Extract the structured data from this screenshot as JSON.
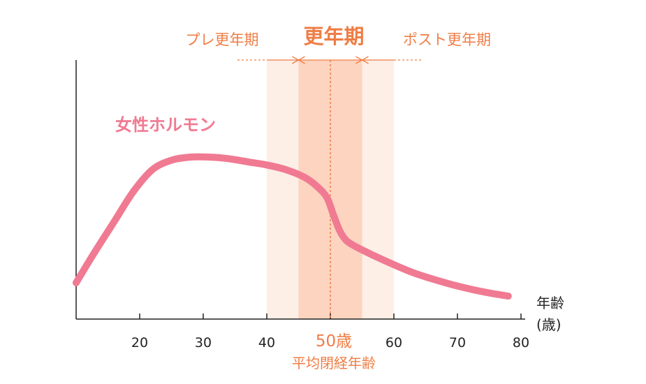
{
  "colors": {
    "curve": "#f07a92",
    "accent": "#ef7d45",
    "band_light": "#fdeee6",
    "band_dark": "#fcd4bf",
    "axis": "#222222"
  },
  "chart_data": {
    "type": "line",
    "x_ticks": [
      "20",
      "30",
      "40",
      "50",
      "60",
      "70",
      "80"
    ],
    "x_tick_values": [
      20,
      30,
      40,
      50,
      60,
      70,
      80
    ],
    "xlim": [
      10,
      80
    ],
    "ylim": [
      0,
      100
    ],
    "xlabel": "年齢",
    "xlabel_unit": "(歳)",
    "grid": false,
    "series": [
      {
        "name": "女性ホルモン",
        "x": [
          10,
          13,
          16,
          19,
          22,
          25,
          28,
          31,
          34,
          37,
          40,
          43,
          46,
          48,
          49.5,
          50.5,
          51.5,
          52.5,
          54,
          57,
          60,
          63,
          66,
          69,
          72,
          75,
          78
        ],
        "y": [
          12,
          32,
          51,
          70,
          84,
          90,
          92,
          92,
          91,
          89,
          87,
          84,
          79,
          73,
          66,
          55,
          45,
          39,
          35,
          29,
          23.5,
          18.5,
          14.5,
          11,
          8,
          5.5,
          3.5
        ]
      }
    ],
    "phases": [
      {
        "label": "プレ更年期",
        "from": 40,
        "to": 45
      },
      {
        "label": "更年期",
        "from": 45,
        "to": 55
      },
      {
        "label": "ポスト更年期",
        "from": 55,
        "to": 60
      }
    ],
    "annotation": {
      "x": 50,
      "label": "50歳",
      "sublabel": "平均閉経年齢"
    }
  }
}
